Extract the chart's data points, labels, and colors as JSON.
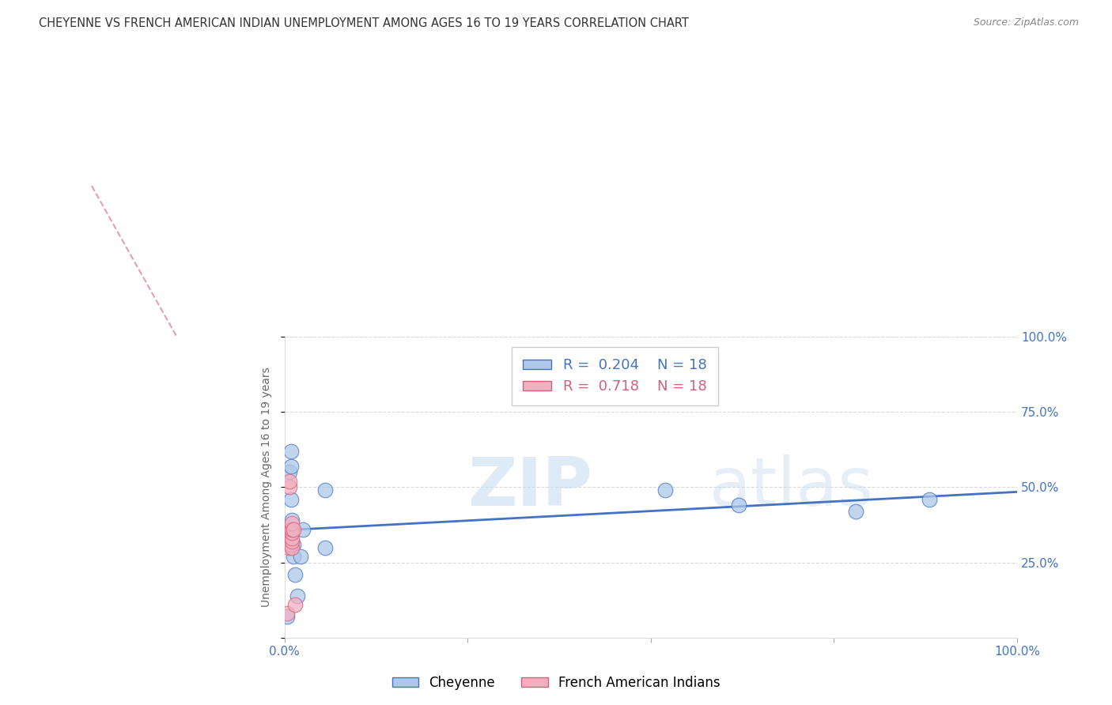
{
  "title": "CHEYENNE VS FRENCH AMERICAN INDIAN UNEMPLOYMENT AMONG AGES 16 TO 19 YEARS CORRELATION CHART",
  "source": "Source: ZipAtlas.com",
  "ylabel": "Unemployment Among Ages 16 to 19 years",
  "xlim": [
    0,
    1.0
  ],
  "ylim": [
    0,
    1.0
  ],
  "cheyenne_x": [
    0.004,
    0.007,
    0.009,
    0.009,
    0.009,
    0.01,
    0.012,
    0.012,
    0.014,
    0.018,
    0.022,
    0.025,
    0.055,
    0.055,
    0.52,
    0.62,
    0.78,
    0.88
  ],
  "cheyenne_y": [
    0.07,
    0.55,
    0.62,
    0.57,
    0.46,
    0.39,
    0.31,
    0.27,
    0.21,
    0.14,
    0.27,
    0.36,
    0.3,
    0.49,
    0.49,
    0.44,
    0.42,
    0.46
  ],
  "french_x": [
    0.004,
    0.005,
    0.006,
    0.007,
    0.007,
    0.008,
    0.008,
    0.009,
    0.009,
    0.009,
    0.01,
    0.01,
    0.01,
    0.01,
    0.01,
    0.01,
    0.012,
    0.015
  ],
  "french_y": [
    0.08,
    0.31,
    0.3,
    0.5,
    0.52,
    0.31,
    0.35,
    0.31,
    0.35,
    0.36,
    0.3,
    0.32,
    0.33,
    0.35,
    0.36,
    0.38,
    0.36,
    0.11
  ],
  "cheyenne_color": "#adc8e8",
  "french_color": "#f0b0c0",
  "cheyenne_line_color": "#4472c4",
  "french_line_color": "#d4607a",
  "r_cheyenne": "0.204",
  "r_french": "0.718",
  "n_cheyenne": "18",
  "n_french": "18",
  "legend_label_cheyenne": "Cheyenne",
  "legend_label_french": "French American Indians",
  "watermark_zip": "ZIP",
  "watermark_atlas": "atlas",
  "background_color": "#ffffff",
  "grid_color": "#d8d8d8"
}
